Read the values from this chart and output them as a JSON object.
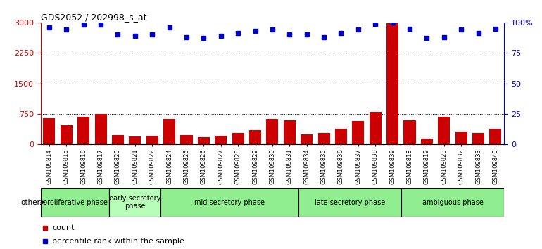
{
  "title": "GDS2052 / 202998_s_at",
  "samples": [
    "GSM109814",
    "GSM109815",
    "GSM109816",
    "GSM109817",
    "GSM109820",
    "GSM109821",
    "GSM109822",
    "GSM109824",
    "GSM109825",
    "GSM109826",
    "GSM109827",
    "GSM109828",
    "GSM109829",
    "GSM109830",
    "GSM109831",
    "GSM109834",
    "GSM109835",
    "GSM109836",
    "GSM109837",
    "GSM109838",
    "GSM109839",
    "GSM109818",
    "GSM109819",
    "GSM109823",
    "GSM109832",
    "GSM109833",
    "GSM109840"
  ],
  "counts": [
    650,
    480,
    680,
    750,
    230,
    200,
    220,
    630,
    230,
    175,
    210,
    290,
    350,
    630,
    590,
    250,
    280,
    380,
    580,
    800,
    2980,
    600,
    150,
    680,
    310,
    280,
    390
  ],
  "percentiles": [
    96,
    94,
    98,
    98,
    90,
    89,
    90,
    96,
    88,
    87,
    89,
    91,
    93,
    94,
    90,
    90,
    88,
    91,
    94,
    99,
    100,
    95,
    87,
    88,
    94,
    91,
    95
  ],
  "bar_color": "#cc0000",
  "dot_color": "#0000cc",
  "left_ylim": [
    0,
    3000
  ],
  "right_ylim": [
    0,
    100
  ],
  "left_yticks": [
    0,
    750,
    1500,
    2250,
    3000
  ],
  "right_yticks": [
    0,
    25,
    50,
    75,
    100
  ],
  "phases": [
    {
      "label": "proliferative phase",
      "start": 0,
      "end": 4,
      "color": "#90ee90"
    },
    {
      "label": "early secretory\nphase",
      "start": 4,
      "end": 7,
      "color": "#b8fdb8"
    },
    {
      "label": "mid secretory phase",
      "start": 7,
      "end": 15,
      "color": "#90ee90"
    },
    {
      "label": "late secretory phase",
      "start": 15,
      "end": 21,
      "color": "#90ee90"
    },
    {
      "label": "ambiguous phase",
      "start": 21,
      "end": 27,
      "color": "#90ee90"
    }
  ]
}
